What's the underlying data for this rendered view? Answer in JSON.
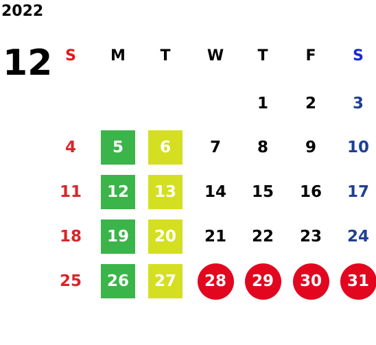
{
  "calendar": {
    "year": "2022",
    "month": "12",
    "weekdays": [
      {
        "label": "S",
        "color": "#e8141c"
      },
      {
        "label": "M",
        "color": "#000000"
      },
      {
        "label": "T",
        "color": "#000000"
      },
      {
        "label": "W",
        "color": "#000000"
      },
      {
        "label": "T",
        "color": "#000000"
      },
      {
        "label": "F",
        "color": "#000000"
      },
      {
        "label": "S",
        "color": "#1528d4"
      }
    ],
    "day_colors": [
      "#d9262a",
      "#000000",
      "#000000",
      "#000000",
      "#000000",
      "#000000",
      "#1f3f94"
    ],
    "weeks": [
      [
        null,
        null,
        null,
        null,
        {
          "text": "1"
        },
        {
          "text": "2"
        },
        {
          "text": "3"
        }
      ],
      [
        {
          "text": "4"
        },
        {
          "text": "5",
          "fill": "#3bb44a",
          "shape": "square"
        },
        {
          "text": "6",
          "fill": "#d4df22",
          "shape": "square"
        },
        {
          "text": "7"
        },
        {
          "text": "8"
        },
        {
          "text": "9"
        },
        {
          "text": "10"
        }
      ],
      [
        {
          "text": "11"
        },
        {
          "text": "12",
          "fill": "#3bb44a",
          "shape": "square"
        },
        {
          "text": "13",
          "fill": "#d4df22",
          "shape": "square"
        },
        {
          "text": "14"
        },
        {
          "text": "15"
        },
        {
          "text": "16"
        },
        {
          "text": "17"
        }
      ],
      [
        {
          "text": "18"
        },
        {
          "text": "19",
          "fill": "#3bb44a",
          "shape": "square"
        },
        {
          "text": "20",
          "fill": "#d4df22",
          "shape": "square"
        },
        {
          "text": "21"
        },
        {
          "text": "22"
        },
        {
          "text": "23"
        },
        {
          "text": "24"
        }
      ],
      [
        {
          "text": "25"
        },
        {
          "text": "26",
          "fill": "#3bb44a",
          "shape": "square"
        },
        {
          "text": "27",
          "fill": "#d4df22",
          "shape": "square"
        },
        {
          "text": "28",
          "fill": "#e3061f",
          "shape": "circle"
        },
        {
          "text": "29",
          "fill": "#e3061f",
          "shape": "circle"
        },
        {
          "text": "30",
          "fill": "#e3061f",
          "shape": "circle"
        },
        {
          "text": "31",
          "fill": "#e3061f",
          "shape": "circle"
        }
      ]
    ]
  }
}
